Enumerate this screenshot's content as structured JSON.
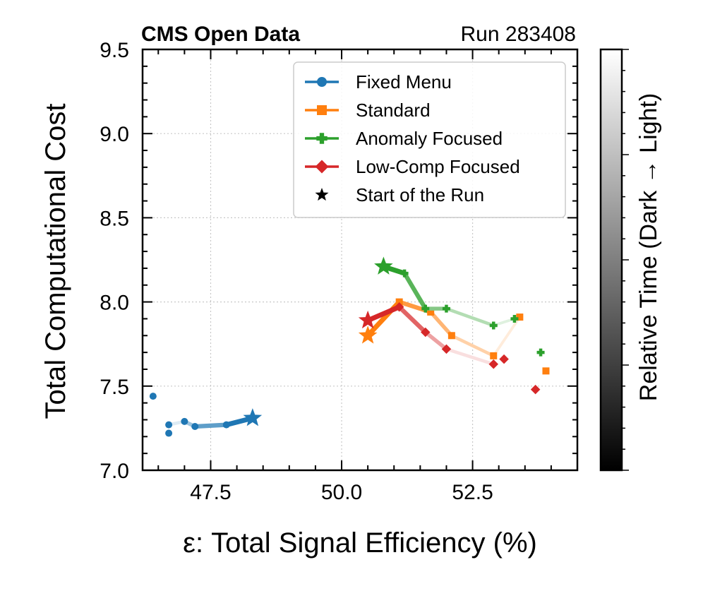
{
  "chart_data": {
    "type": "line",
    "header_left": "CMS Open Data",
    "header_right": "Run 283408",
    "xlabel": "ε: Total Signal Efficiency (%)",
    "ylabel": "Total Computational Cost",
    "xlim": [
      46.2,
      54.5
    ],
    "ylim": [
      7.0,
      9.5
    ],
    "xticks": [
      47.5,
      50.0,
      52.5
    ],
    "xtick_labels": [
      "47.5",
      "50.0",
      "52.5"
    ],
    "yticks": [
      7.0,
      7.5,
      8.0,
      8.5,
      9.0,
      9.5
    ],
    "ytick_labels": [
      "7.0",
      "7.5",
      "8.0",
      "8.5",
      "9.0",
      "9.5"
    ],
    "grid": true,
    "legend_position": "top-right",
    "colorbar_label": "Relative Time (Dark → Light)",
    "series": [
      {
        "name": "Fixed Menu",
        "color": "#1f77b4",
        "marker": "circle",
        "start": [
          48.3,
          7.31
        ],
        "line": [
          [
            48.3,
            7.31
          ],
          [
            47.8,
            7.27
          ],
          [
            47.2,
            7.26
          ],
          [
            47.0,
            7.29
          ],
          [
            46.7,
            7.27
          ]
        ],
        "points": [
          [
            47.8,
            7.27
          ],
          [
            47.2,
            7.26
          ],
          [
            47.0,
            7.29
          ],
          [
            46.7,
            7.27
          ],
          [
            46.7,
            7.22
          ],
          [
            46.4,
            7.44
          ]
        ]
      },
      {
        "name": "Standard",
        "color": "#ff7f0e",
        "marker": "square",
        "start": [
          50.5,
          7.8
        ],
        "line": [
          [
            50.5,
            7.8
          ],
          [
            51.1,
            8.0
          ],
          [
            51.7,
            7.94
          ],
          [
            52.1,
            7.8
          ],
          [
            52.9,
            7.68
          ],
          [
            53.4,
            7.91
          ]
        ],
        "points": [
          [
            51.1,
            8.0
          ],
          [
            51.7,
            7.94
          ],
          [
            52.1,
            7.8
          ],
          [
            52.9,
            7.68
          ],
          [
            53.4,
            7.91
          ],
          [
            53.9,
            7.59
          ]
        ]
      },
      {
        "name": "Anomaly Focused",
        "color": "#2ca02c",
        "marker": "plus",
        "start": [
          50.8,
          8.21
        ],
        "line": [
          [
            50.8,
            8.21
          ],
          [
            51.2,
            8.17
          ],
          [
            51.6,
            7.96
          ],
          [
            52.0,
            7.96
          ],
          [
            52.9,
            7.86
          ],
          [
            53.3,
            7.9
          ]
        ],
        "points": [
          [
            51.2,
            8.17
          ],
          [
            51.6,
            7.96
          ],
          [
            52.0,
            7.96
          ],
          [
            52.9,
            7.86
          ],
          [
            53.3,
            7.9
          ],
          [
            53.8,
            7.7
          ]
        ]
      },
      {
        "name": "Low-Comp Focused",
        "color": "#d62728",
        "marker": "diamond",
        "start": [
          50.5,
          7.89
        ],
        "line": [
          [
            50.5,
            7.89
          ],
          [
            51.1,
            7.97
          ],
          [
            51.6,
            7.82
          ],
          [
            52.0,
            7.72
          ],
          [
            52.9,
            7.63
          ]
        ],
        "points": [
          [
            51.1,
            7.97
          ],
          [
            51.6,
            7.82
          ],
          [
            52.0,
            7.72
          ],
          [
            52.9,
            7.63
          ],
          [
            53.1,
            7.66
          ],
          [
            53.7,
            7.48
          ]
        ]
      }
    ],
    "legend": [
      {
        "label": "Fixed Menu",
        "color": "#1f77b4",
        "marker": "circle"
      },
      {
        "label": "Standard",
        "color": "#ff7f0e",
        "marker": "square"
      },
      {
        "label": "Anomaly Focused",
        "color": "#2ca02c",
        "marker": "plus"
      },
      {
        "label": "Low-Comp Focused",
        "color": "#d62728",
        "marker": "diamond"
      },
      {
        "label": "Start of the Run",
        "color": "#000000",
        "marker": "star"
      }
    ]
  }
}
